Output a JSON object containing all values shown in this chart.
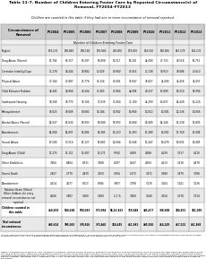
{
  "title": "Table 11-7. Number of Children Entering Foster Care by Reported Circumstance(s) of\nRemoval, FY2004-FY2013",
  "subtitle": "Children are counted in this table if they had one or more circumstance of removal reported.",
  "columns": [
    "Circumstances of\nRemoval",
    "FY2004",
    "FY2005",
    "FY2006",
    "FY2007",
    "FY2008",
    "FY2009",
    "FY2010",
    "FY2011",
    "FY2012",
    "FY2013"
  ],
  "col_header_note": "Number of Children Entering Foster Care",
  "rows": [
    [
      "Neglect",
      "196,131",
      "190,846",
      "190,184",
      "196,946",
      "200,050",
      "179,800",
      "163,510",
      "150,056",
      "147,178",
      "163,131"
    ],
    [
      "Drug Abuse (Parent)",
      "57,764",
      "66,317",
      "66,297",
      "66,898",
      "57,517",
      "50,185",
      "44,699",
      "47,733",
      "48,518",
      "50,715"
    ],
    [
      "Caretaker Inability/Cope",
      "31,278",
      "32,444",
      "38,882",
      "41,029",
      "49,960",
      "45,016",
      "41,138",
      "39,913",
      "38,088",
      "43,613"
    ],
    [
      "Physical Abuse",
      "47,164",
      "47,887",
      "45,776",
      "46,334",
      "45,603",
      "39,947",
      "38,827",
      "34,600",
      "34,458",
      "34,657"
    ],
    [
      "Child Behavior Problem",
      "32,445",
      "32,868",
      "46,264",
      "47,403",
      "47,864",
      "42,008",
      "28,237",
      "17,899",
      "16,210",
      "16,994"
    ],
    [
      "Inadequate Housing",
      "30,168",
      "30,770",
      "38,106",
      "37,039",
      "31,660",
      "31,190",
      "24,290",
      "13,837",
      "14,428",
      "12,226"
    ],
    [
      "Relinquishment",
      "38,023",
      "38,609",
      "38,082",
      "36,184",
      "33,902",
      "15,869",
      "13,812",
      "13,004",
      "12,136",
      "13,066"
    ],
    [
      "Alcohol Abuse (Parent)",
      "14,927",
      "15,830",
      "18,993",
      "18,686",
      "18,993",
      "13,868",
      "16,689",
      "14,346",
      "13,238",
      "13,895"
    ],
    [
      "Abandonment",
      "14,068",
      "14,097",
      "15,806",
      "16,385",
      "13,223",
      "11,493",
      "11,389",
      "13,002",
      "11,760",
      "11,008"
    ],
    [
      "Sexual Abuse",
      "17,586",
      "47,516",
      "15,127",
      "15,883",
      "12,694",
      "11,048",
      "11,447",
      "10,478",
      "10,039",
      "10,485"
    ],
    [
      "Drug Abuse (Child)",
      "11,275",
      "11,151",
      "11,697",
      "11,571",
      "9,760",
      "6,389",
      "4,988",
      "4,139",
      "3,717",
      "4,119"
    ],
    [
      "Other Disabilities",
      "7,904",
      "8,864",
      "8,731",
      "7,848",
      "6,787",
      "6,347",
      "4,394",
      "4,213",
      "3,218",
      "4,478"
    ],
    [
      "Parent Death",
      "2,827",
      "2,779",
      "4,670",
      "2,959",
      "3,094",
      "1,473",
      "3,471",
      "3,698",
      "3,479",
      "3,788"
    ],
    [
      "Abandonment",
      "4,314",
      "4,577",
      "5,013",
      "5,084",
      "3,897",
      "3,798",
      "3,176",
      "3,104",
      "3,141",
      "3,136"
    ],
    [
      "Relative Home (Other)\nOther children die entry\nremoval circumstances not\nreported",
      "4,046",
      "3,887",
      "3,069",
      "3,969",
      "2.1 %",
      "3,869",
      "3,046",
      "3,024",
      "3,178",
      "3,714"
    ],
    [
      "Children counted in\nthis table",
      "460,893",
      "500,688",
      "558,083",
      "573,994",
      "56,16,823",
      "359,848",
      "345,477",
      "338,888",
      "380,831",
      "361,090"
    ],
    [
      "Total national\ncircumstances",
      "405,614",
      "395,083",
      "378,826",
      "373,460",
      "360,445",
      "411,981",
      "405,910",
      "414,149",
      "417,201",
      "411,868"
    ]
  ],
  "footer": "Source: Table prepared by the Congressional Research Service on September 1, 2014 from the AFCARS version of the Visualize Ways and Means Committee Data Book are based on data provided by HHS, ACF, ACYF, Children's Bureau as requested by the US census, BG, and Puerto Rico as of July 2014.",
  "notes": "Notes: \"Circumstance of removal\" are \"conditions or actions\" that are known to pose or potentially increase the risks the licensee is likely to remove the child from their home and or place the child in foster care. States are mandated to report all circumstances that apply and each child may have one or more circumstances of removal reported. Therefore the multi-counted circumstances/conditions exceed the total number of children who were removed. The guidance on reporting this information see HHS, ACF, ACYF Children's Bureau Guide to AFCARS Revised Report, Pt Report, December 2012, Appendix C, pp. 17-19. These data values may not from previous versions of this table because foster care data are revised if states submit corrected information.",
  "bg_color": "#FFFFFF",
  "header_bg": "#CCCCCC",
  "alt_row_bg": "#E8E8E8"
}
